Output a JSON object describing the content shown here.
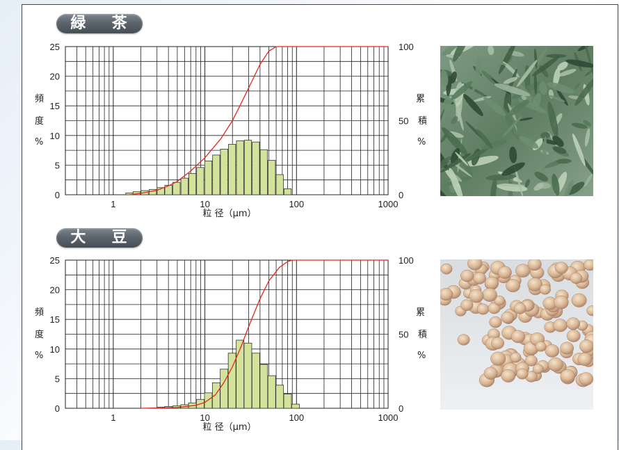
{
  "sections": [
    {
      "title_chars": [
        "緑",
        "茶"
      ],
      "photo": "green-tea-leaves",
      "chart_data": {
        "type": "bar",
        "x_scale": "log",
        "xlim": [
          0.3,
          1000
        ],
        "ylim": [
          0,
          25
        ],
        "y2lim": [
          0,
          100
        ],
        "x_tick_labels": [
          "1",
          "10",
          "100",
          "1000"
        ],
        "y_tick_labels": [
          "0",
          "5",
          "10",
          "15",
          "20",
          "25"
        ],
        "y2_tick_labels": [
          "0",
          "50",
          "100"
        ],
        "ylabel_chars": [
          "頻",
          "度",
          "%"
        ],
        "y2label_chars": [
          "累",
          "積",
          "%"
        ],
        "xlabel": "粒 径（μm）",
        "histogram": {
          "bin_centers_um": [
            1.5,
            1.8,
            2.2,
            2.7,
            3.3,
            4.0,
            4.9,
            6.0,
            7.3,
            8.9,
            10.9,
            13.3,
            16.2,
            19.8,
            24.2,
            29.5,
            36.0,
            44.0,
            53.7,
            65.6,
            80.0
          ],
          "values": [
            0.3,
            0.5,
            0.7,
            0.9,
            1.2,
            1.6,
            2.1,
            2.8,
            3.6,
            4.6,
            5.7,
            6.7,
            7.7,
            8.5,
            9.1,
            9.2,
            8.9,
            7.6,
            5.8,
            3.4,
            1.0
          ]
        },
        "cumulative": {
          "x_um": [
            1.5,
            2.0,
            3.0,
            4.0,
            5.0,
            7.0,
            10.0,
            15.0,
            20.0,
            25.0,
            30.0,
            40.0,
            50.0,
            60.0,
            65.0,
            1000
          ],
          "y": [
            0,
            1,
            3,
            6,
            9,
            16,
            25,
            38,
            50,
            62,
            72,
            88,
            97,
            100,
            100,
            100
          ]
        },
        "colors": {
          "bar_fill": "#d4e39c",
          "bar_stroke": "#333333",
          "curve": "#e2281e"
        }
      }
    },
    {
      "title_chars": [
        "大",
        "豆"
      ],
      "photo": "soybeans",
      "chart_data": {
        "type": "bar",
        "x_scale": "log",
        "xlim": [
          0.3,
          1000
        ],
        "ylim": [
          0,
          25
        ],
        "y2lim": [
          0,
          100
        ],
        "x_tick_labels": [
          "1",
          "10",
          "100",
          "1000"
        ],
        "y_tick_labels": [
          "0",
          "5",
          "10",
          "15",
          "20",
          "25"
        ],
        "y2_tick_labels": [
          "0",
          "50",
          "100"
        ],
        "ylabel_chars": [
          "頻",
          "度",
          "%"
        ],
        "y2label_chars": [
          "累",
          "積",
          "%"
        ],
        "xlabel": "粒 径（μm）",
        "histogram": {
          "bin_centers_um": [
            3.3,
            4.0,
            4.9,
            6.0,
            7.3,
            8.9,
            10.9,
            13.3,
            16.2,
            19.8,
            24.2,
            29.5,
            36.0,
            44.0,
            53.7,
            65.6,
            80.0,
            97.7
          ],
          "values": [
            0.2,
            0.3,
            0.4,
            0.6,
            0.9,
            1.5,
            2.6,
            4.3,
            6.6,
            9.3,
            11.5,
            11.0,
            9.3,
            7.4,
            5.5,
            3.9,
            2.4,
            0.7
          ]
        },
        "cumulative": {
          "x_um": [
            2.0,
            5.0,
            8.0,
            10.0,
            13.0,
            16.0,
            20.0,
            25.0,
            30.0,
            40.0,
            50.0,
            65.0,
            80.0,
            90.0,
            1000
          ],
          "y": [
            0,
            0.5,
            2,
            4,
            9,
            17,
            28,
            42,
            55,
            74,
            86,
            95,
            99,
            100,
            100
          ]
        },
        "colors": {
          "bar_fill": "#d4e39c",
          "bar_stroke": "#333333",
          "curve": "#e2281e"
        }
      }
    }
  ]
}
